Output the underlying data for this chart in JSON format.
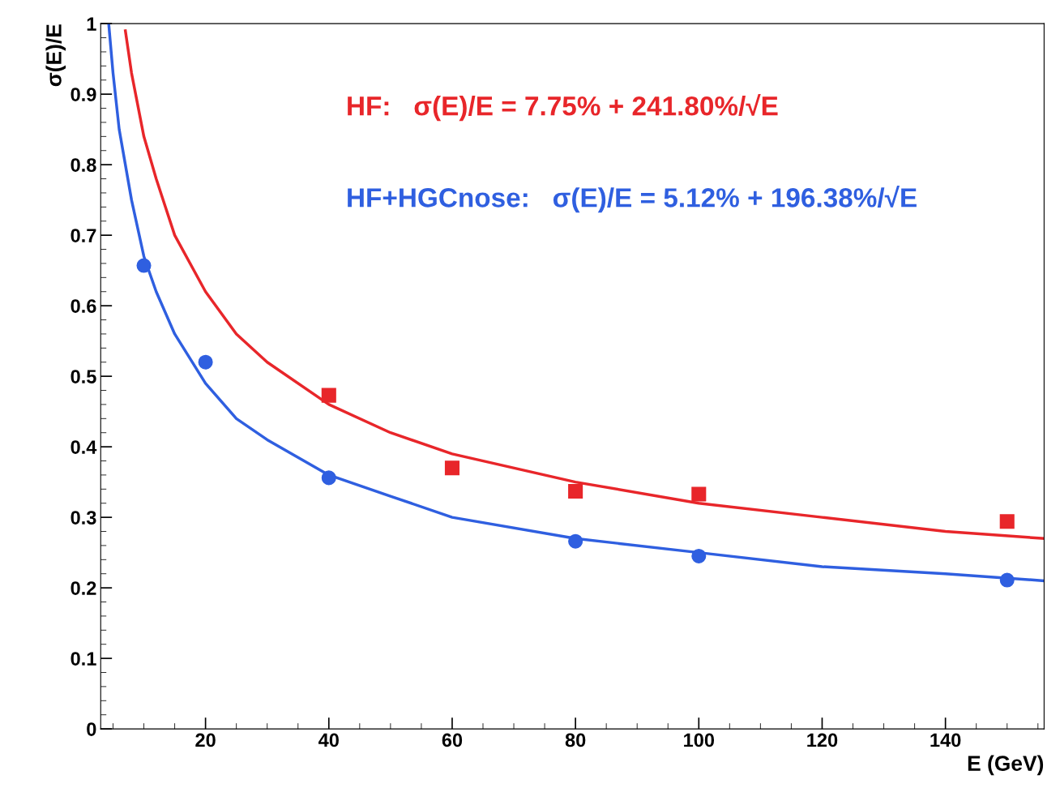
{
  "chart_data": {
    "type": "scatter",
    "xlabel": "E (GeV)",
    "ylabel": "σ(E)/E",
    "xlim": [
      3,
      156
    ],
    "xticks": [
      20,
      40,
      60,
      80,
      100,
      120,
      140
    ],
    "ylim": [
      0,
      1
    ],
    "yticks": [
      0,
      0.1,
      0.2,
      0.3,
      0.4,
      0.5,
      0.6,
      0.7,
      0.8,
      0.9,
      1
    ],
    "grid": false,
    "legend": false,
    "annotations": [
      "HF:   σ(E)/E = 7.75% + 241.80%/√E",
      "HF+HGCnose:   σ(E)/E = 5.12% + 196.38%/√E"
    ],
    "series": [
      {
        "marker": "square",
        "color": "#e8262a",
        "x": [
          40,
          60,
          80,
          100,
          150
        ],
        "values": [
          0.473,
          0.37,
          0.337,
          0.333,
          0.294
        ]
      },
      {
        "type": "line",
        "marker": "none",
        "color": "#e8262a",
        "x": [
          7,
          8,
          10,
          12,
          15,
          20,
          25,
          30,
          40,
          50,
          60,
          80,
          100,
          120,
          140,
          156
        ],
        "values": [
          0.99,
          0.93,
          0.84,
          0.78,
          0.7,
          0.62,
          0.56,
          0.52,
          0.46,
          0.42,
          0.39,
          0.35,
          0.32,
          0.3,
          0.28,
          0.27
        ]
      },
      {
        "marker": "circle",
        "color": "#2f5fe0",
        "x": [
          10,
          20,
          40,
          80,
          100,
          150
        ],
        "values": [
          0.657,
          0.52,
          0.356,
          0.266,
          0.245,
          0.211
        ]
      },
      {
        "type": "line",
        "marker": "none",
        "color": "#2f5fe0",
        "x": [
          4.3,
          5,
          6,
          8,
          10,
          12,
          15,
          20,
          25,
          30,
          40,
          50,
          60,
          80,
          100,
          120,
          140,
          156
        ],
        "values": [
          1.0,
          0.93,
          0.85,
          0.75,
          0.67,
          0.62,
          0.56,
          0.49,
          0.44,
          0.41,
          0.36,
          0.33,
          0.3,
          0.27,
          0.25,
          0.23,
          0.22,
          0.21
        ]
      }
    ]
  }
}
